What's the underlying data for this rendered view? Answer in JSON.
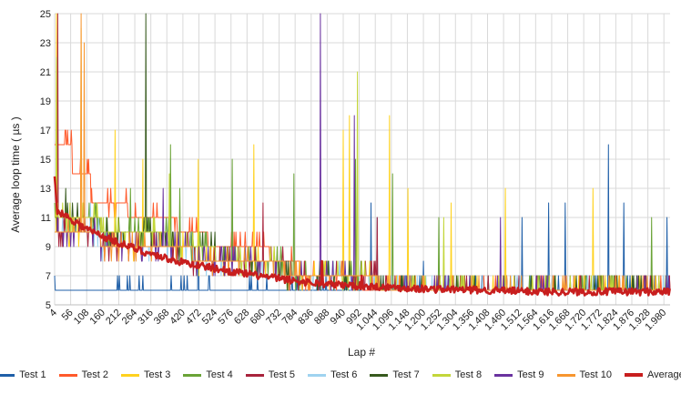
{
  "chart_data": {
    "type": "line",
    "title": "",
    "xlabel": "Lap #",
    "ylabel": "Average loop time ( µs )",
    "ylim": [
      5,
      25
    ],
    "yticks": [
      5,
      7,
      9,
      11,
      13,
      15,
      17,
      19,
      21,
      23,
      25
    ],
    "xlim": [
      4,
      2000
    ],
    "xtick_values": [
      4,
      56,
      108,
      160,
      212,
      264,
      316,
      368,
      420,
      472,
      524,
      576,
      628,
      680,
      732,
      784,
      836,
      888,
      940,
      992,
      1044,
      1096,
      1148,
      1200,
      1252,
      1304,
      1356,
      1408,
      1460,
      1512,
      1564,
      1616,
      1668,
      1720,
      1772,
      1824,
      1876,
      1928,
      1980
    ],
    "xtick_labels": [
      "4",
      "56",
      "108",
      "160",
      "212",
      "264",
      "316",
      "368",
      "420",
      "472",
      "524",
      "576",
      "628",
      "680",
      "732",
      "784",
      "836",
      "888",
      "940",
      "992",
      "1.044",
      "1.096",
      "1.148",
      "1.200",
      "1.252",
      "1.304",
      "1.356",
      "1.408",
      "1.460",
      "1.512",
      "1.564",
      "1.616",
      "1.668",
      "1.720",
      "1.772",
      "1.824",
      "1.876",
      "1.928",
      "1.980"
    ],
    "grid": true,
    "legend_position": "bottom",
    "series": [
      {
        "name": "Test 1",
        "color": "#1f5fa8",
        "base": [
          [
            4,
            6
          ],
          [
            2000,
            6
          ]
        ],
        "spikes": [
          [
            470,
            13
          ],
          [
            1030,
            12
          ],
          [
            1050,
            11
          ],
          [
            1200,
            8
          ],
          [
            1520,
            11
          ],
          [
            1605,
            12
          ],
          [
            1660,
            12
          ],
          [
            1800,
            16
          ],
          [
            1850,
            12
          ],
          [
            1990,
            11
          ]
        ]
      },
      {
        "name": "Test 2",
        "color": "#ff5a2b",
        "base": [
          [
            4,
            16
          ],
          [
            60,
            16
          ],
          [
            61,
            14
          ],
          [
            120,
            14
          ],
          [
            121,
            12
          ],
          [
            240,
            12
          ],
          [
            241,
            11
          ],
          [
            400,
            11
          ],
          [
            401,
            10
          ],
          [
            500,
            10
          ],
          [
            501,
            9
          ],
          [
            700,
            9
          ],
          [
            701,
            8
          ],
          [
            800,
            8
          ],
          [
            801,
            7
          ],
          [
            1000,
            7
          ],
          [
            1001,
            6
          ],
          [
            2000,
            6
          ]
        ],
        "spikes": [
          [
            10,
            18
          ],
          [
            40,
            17
          ],
          [
            110,
            15
          ]
        ]
      },
      {
        "name": "Test 3",
        "color": "#ffd21f",
        "base": [
          [
            4,
            10
          ],
          [
            300,
            9
          ],
          [
            600,
            8
          ],
          [
            900,
            7
          ],
          [
            1200,
            6
          ],
          [
            2000,
            6
          ]
        ],
        "spikes": [
          [
            10,
            25
          ],
          [
            90,
            24
          ],
          [
            200,
            17
          ],
          [
            290,
            15
          ],
          [
            470,
            15
          ],
          [
            650,
            16
          ],
          [
            940,
            17
          ],
          [
            960,
            18
          ],
          [
            1090,
            18
          ],
          [
            1150,
            13
          ],
          [
            1290,
            12
          ],
          [
            1465,
            13
          ],
          [
            1750,
            13
          ]
        ]
      },
      {
        "name": "Test 4",
        "color": "#6aa337",
        "base": [
          [
            4,
            11
          ],
          [
            300,
            10
          ],
          [
            600,
            8
          ],
          [
            900,
            7
          ],
          [
            1200,
            6
          ],
          [
            2000,
            6
          ]
        ],
        "spikes": [
          [
            250,
            13
          ],
          [
            380,
            16
          ],
          [
            410,
            13
          ],
          [
            580,
            15
          ],
          [
            780,
            14
          ],
          [
            980,
            15
          ],
          [
            1100,
            14
          ],
          [
            1250,
            11
          ],
          [
            1940,
            11
          ]
        ]
      },
      {
        "name": "Test 5",
        "color": "#a8233c",
        "base": [
          [
            4,
            10
          ],
          [
            300,
            9
          ],
          [
            600,
            8
          ],
          [
            900,
            7
          ],
          [
            1200,
            6
          ],
          [
            2000,
            6
          ]
        ],
        "spikes": [
          [
            14,
            25
          ],
          [
            680,
            12
          ],
          [
            1050,
            11
          ]
        ]
      },
      {
        "name": "Test 6",
        "color": "#9fd3f0",
        "base": [
          [
            4,
            10
          ],
          [
            300,
            9
          ],
          [
            600,
            8
          ],
          [
            900,
            7
          ],
          [
            1200,
            6
          ],
          [
            2000,
            6
          ]
        ],
        "spikes": [
          [
            120,
            12
          ]
        ]
      },
      {
        "name": "Test 7",
        "color": "#375a1e",
        "base": [
          [
            4,
            11
          ],
          [
            300,
            10
          ],
          [
            600,
            8
          ],
          [
            900,
            7
          ],
          [
            1200,
            6
          ],
          [
            2000,
            6
          ]
        ],
        "spikes": [
          [
            40,
            13
          ],
          [
            300,
            25
          ]
        ]
      },
      {
        "name": "Test 8",
        "color": "#c3d63a",
        "base": [
          [
            4,
            11
          ],
          [
            300,
            10
          ],
          [
            600,
            8
          ],
          [
            900,
            7
          ],
          [
            1200,
            6
          ],
          [
            2000,
            6
          ]
        ],
        "spikes": [
          [
            10,
            22
          ],
          [
            375,
            14
          ],
          [
            985,
            21
          ],
          [
            1265,
            11
          ]
        ]
      },
      {
        "name": "Test 9",
        "color": "#6a329f",
        "base": [
          [
            4,
            10
          ],
          [
            300,
            9
          ],
          [
            600,
            8
          ],
          [
            900,
            7
          ],
          [
            1200,
            6
          ],
          [
            2000,
            6
          ]
        ],
        "spikes": [
          [
            355,
            13
          ],
          [
            865,
            25
          ],
          [
            975,
            18
          ],
          [
            1450,
            11
          ]
        ]
      },
      {
        "name": "Test 10",
        "color": "#f7962f",
        "base": [
          [
            4,
            10
          ],
          [
            300,
            9
          ],
          [
            600,
            8
          ],
          [
            900,
            7
          ],
          [
            1200,
            6
          ],
          [
            2000,
            6
          ]
        ],
        "spikes": [
          [
            90,
            25
          ],
          [
            100,
            23
          ]
        ]
      },
      {
        "name": "Average",
        "color": "#c81e1e",
        "bold": true,
        "base": [
          [
            4,
            13.7
          ],
          [
            12,
            11.5
          ],
          [
            50,
            11
          ],
          [
            100,
            10.3
          ],
          [
            160,
            9.7
          ],
          [
            220,
            9.2
          ],
          [
            300,
            8.6
          ],
          [
            400,
            8
          ],
          [
            500,
            7.6
          ],
          [
            600,
            7.2
          ],
          [
            700,
            6.9
          ],
          [
            800,
            6.6
          ],
          [
            900,
            6.4
          ],
          [
            1000,
            6.3
          ],
          [
            1200,
            6.1
          ],
          [
            1400,
            6
          ],
          [
            1600,
            5.9
          ],
          [
            1800,
            5.9
          ],
          [
            2000,
            5.9
          ]
        ],
        "spikes": [
          [
            870,
            8
          ],
          [
            1000,
            7
          ]
        ]
      }
    ]
  }
}
